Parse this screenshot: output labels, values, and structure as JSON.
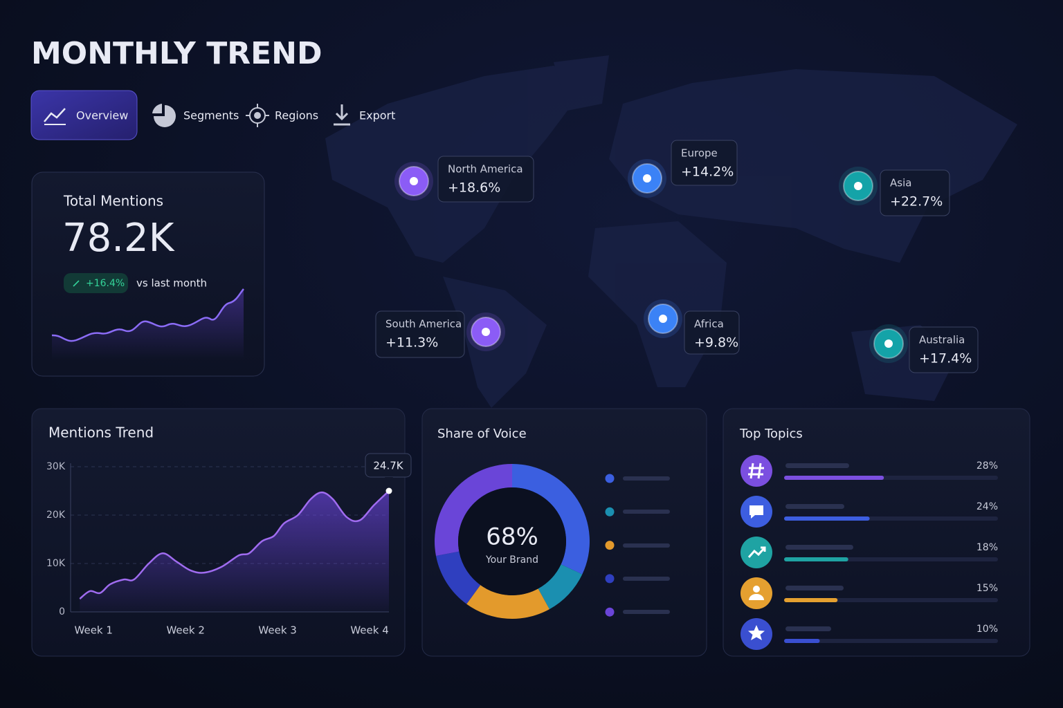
{
  "header": {
    "title": "MONTHLY TREND"
  },
  "tabs": [
    "Overview",
    "Segments",
    "Regions",
    "Export"
  ],
  "total_mentions": {
    "label": "Total Mentions",
    "value": "78.2K",
    "change": "+16.4%",
    "change_note": "vs last month"
  },
  "regions": [
    {
      "name": "North America",
      "change": "+18.6%",
      "color": "#8b5cf6"
    },
    {
      "name": "Europe",
      "change": "+14.2%",
      "color": "#3b82f6"
    },
    {
      "name": "Asia",
      "change": "+22.7%",
      "color": "#14a3a8"
    },
    {
      "name": "South America",
      "change": "+11.3%",
      "color": "#8b5cf6"
    },
    {
      "name": "Africa",
      "change": "+9.8%",
      "color": "#3b82f6"
    },
    {
      "name": "Australia",
      "change": "+17.4%",
      "color": "#14a3a8"
    }
  ],
  "mentions_trend": {
    "type": "line",
    "title": "Mentions Trend",
    "x": [
      0.85,
      0.96,
      1.07,
      1.18,
      1.33,
      1.44,
      1.6,
      1.75,
      1.9,
      2.05,
      2.2,
      2.39,
      2.58,
      2.69,
      2.83,
      2.96,
      3.07,
      3.22,
      3.36,
      3.48,
      3.6,
      3.75,
      3.89,
      4.05,
      4.21
    ],
    "values": [
      2700,
      4300,
      3900,
      5700,
      6700,
      6700,
      10000,
      12100,
      10400,
      8600,
      8100,
      9300,
      11700,
      12100,
      14600,
      15700,
      18300,
      20000,
      23300,
      24700,
      23300,
      19600,
      18900,
      22100,
      25000
    ],
    "xlim": [
      0.75,
      4.21
    ],
    "xticks": [
      {
        "value": 1,
        "label": "Week 1"
      },
      {
        "value": 2,
        "label": "Week 2"
      },
      {
        "value": 3,
        "label": "Week 3"
      },
      {
        "value": 4,
        "label": "Week 4"
      }
    ],
    "ylim": [
      0,
      30000
    ],
    "yticks": [
      0,
      {
        "value": 10000,
        "label": "10K"
      },
      {
        "value": 20000,
        "label": "20K"
      },
      {
        "value": 30000,
        "label": "30K"
      }
    ],
    "color": "#a06cf0",
    "grid": true,
    "annotation": "24.7K"
  },
  "share_of_voice": {
    "type": "donut",
    "title": "Share of Voice",
    "values": [
      32,
      10,
      18,
      12,
      28
    ],
    "colors": [
      "#3b5fe0",
      "#1b8fb0",
      "#e39a2c",
      "#2f3fbf",
      "#6a45d8"
    ],
    "center_value": "68%",
    "center_label": "Your Brand"
  },
  "top_topics": {
    "type": "bar",
    "title": "Top Topics",
    "values": [
      28,
      24,
      18,
      15,
      10
    ],
    "value_labels": [
      "28%",
      "24%",
      "18%",
      "15%",
      "10%"
    ],
    "colors": [
      "#7b4fe0",
      "#3d5ee0",
      "#1fa3a3",
      "#e5a030",
      "#3a4fd0"
    ],
    "xlim": [
      0,
      60
    ]
  }
}
